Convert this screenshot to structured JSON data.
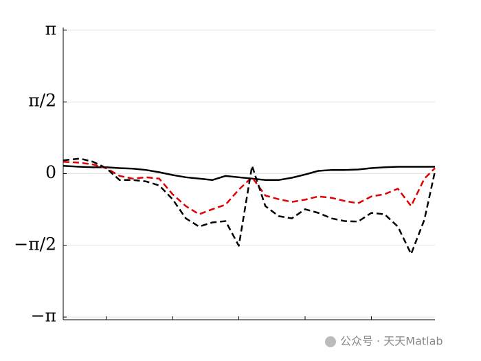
{
  "chart_data": {
    "type": "line",
    "x": [
      0.35,
      0.6,
      0.8,
      1.0,
      1.2,
      1.4,
      1.6,
      1.8,
      2.0,
      2.2,
      2.4,
      2.6,
      2.8,
      3.0,
      3.2,
      3.4,
      3.6,
      3.8,
      4.0,
      4.2,
      4.4,
      4.6,
      4.8,
      5.0,
      5.2,
      5.4,
      5.6,
      5.8,
      5.96
    ],
    "series": [
      {
        "color": "#000000",
        "dash": "solid",
        "values": [
          0.17,
          0.15,
          0.14,
          0.14,
          0.12,
          0.11,
          0.08,
          0.03,
          -0.03,
          -0.08,
          -0.11,
          -0.14,
          -0.05,
          -0.08,
          -0.11,
          -0.14,
          -0.14,
          -0.09,
          -0.02,
          0.06,
          0.08,
          0.08,
          0.09,
          0.12,
          0.14,
          0.15,
          0.15,
          0.15,
          0.15
        ]
      },
      {
        "color": "#e00000",
        "dash": "dashed",
        "values": [
          0.26,
          0.24,
          0.2,
          0.12,
          -0.05,
          -0.11,
          -0.08,
          -0.11,
          -0.45,
          -0.71,
          -0.89,
          -0.78,
          -0.68,
          -0.35,
          -0.08,
          -0.48,
          -0.56,
          -0.62,
          -0.57,
          -0.5,
          -0.53,
          -0.6,
          -0.65,
          -0.5,
          -0.45,
          -0.33,
          -0.71,
          -0.11,
          0.12
        ]
      },
      {
        "color": "#000000",
        "dash": "dashed",
        "values": [
          0.29,
          0.33,
          0.26,
          0.12,
          -0.14,
          -0.14,
          -0.17,
          -0.26,
          -0.56,
          -0.98,
          -1.16,
          -1.07,
          -1.04,
          -1.58,
          0.17,
          -0.71,
          -0.93,
          -0.98,
          -0.78,
          -0.86,
          -0.98,
          -1.04,
          -1.05,
          -0.86,
          -0.89,
          -1.16,
          -1.76,
          -1.01,
          0.05
        ]
      }
    ],
    "xlim": [
      0.35,
      5.96
    ],
    "xticks": [
      1,
      2,
      3,
      4,
      5
    ],
    "ylim": [
      -3.2,
      3.2
    ],
    "yticks": [
      {
        "value": 3.14159,
        "label": "π"
      },
      {
        "value": 1.5708,
        "label": "π/2"
      },
      0,
      {
        "value": -1.5708,
        "label": "−π/2"
      },
      {
        "value": -3.14159,
        "label": "−π"
      }
    ],
    "grid": true
  },
  "watermark": "公众号 · 天天Matlab"
}
